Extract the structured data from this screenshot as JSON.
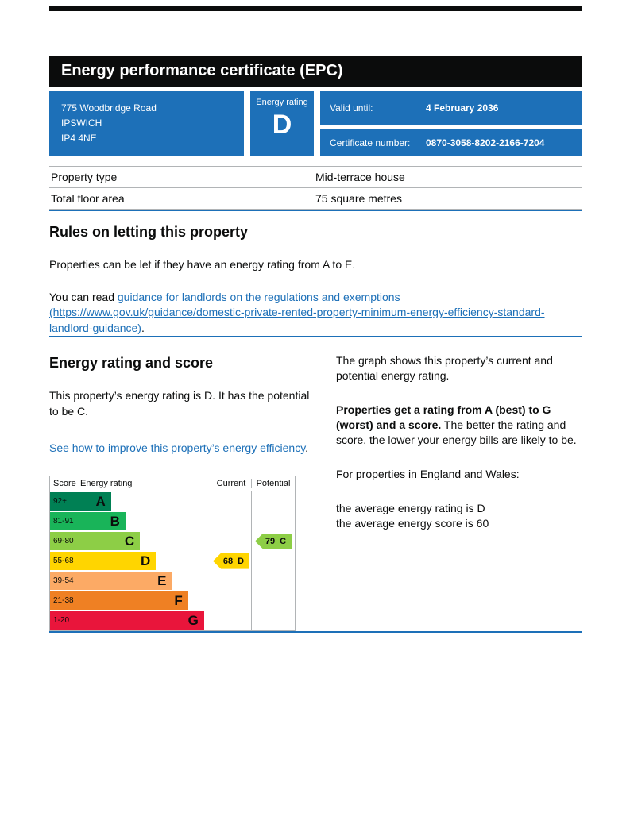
{
  "header": {
    "title": "Energy performance certificate (EPC)"
  },
  "summary": {
    "address_lines": [
      "775 Woodbridge Road",
      "IPSWICH",
      "IP4 4NE"
    ],
    "energy_rating_label": "Energy rating",
    "energy_rating_value": "D",
    "valid_until_label": "Valid until:",
    "valid_until_value": "4 February 2036",
    "certificate_number_label": "Certificate number:",
    "certificate_number_value": "0870-3058-8202-2166-7204"
  },
  "property_table": {
    "rows": [
      {
        "label": "Property type",
        "value": "Mid-terrace house"
      },
      {
        "label": "Total floor area",
        "value": "75 square metres"
      }
    ]
  },
  "rules_section": {
    "heading": "Rules on letting this property",
    "paragraph1": "Properties can be let if they have an energy rating from A to E.",
    "paragraph2_prefix": "You can read ",
    "paragraph2_link": "guidance for landlords on the regulations and exemptions (https://www.gov.uk/guidance/domestic-private-rented-property-minimum-energy-efficiency-standard-landlord-guidance)",
    "paragraph2_suffix": "."
  },
  "rating_section": {
    "heading": "Energy rating and score",
    "paragraph1": "This property’s energy rating is D. It has the potential to be C.",
    "improve_link": "See how to improve this property’s energy efficiency",
    "improve_link_suffix": ".",
    "right_paragraph1": "The graph shows this property’s current and potential energy rating.",
    "right_paragraph2_bold": "Properties get a rating from A (best) to G (worst) and a score.",
    "right_paragraph2_rest": " The better the rating and score, the lower your energy bills are likely to be.",
    "right_paragraph3": "For properties in England and Wales:",
    "right_line1": "the average energy rating is D",
    "right_line2": "the average energy score is 60"
  },
  "chart_data": {
    "type": "bar",
    "title": "Energy rating and score chart",
    "columns": [
      "Score",
      "Energy rating",
      "Current",
      "Potential"
    ],
    "bands": [
      {
        "score": "92+",
        "letter": "A",
        "color": "#008054",
        "width_pct": 38
      },
      {
        "score": "81-91",
        "letter": "B",
        "color": "#19b459",
        "width_pct": 47
      },
      {
        "score": "69-80",
        "letter": "C",
        "color": "#8dce46",
        "width_pct": 56
      },
      {
        "score": "55-68",
        "letter": "D",
        "color": "#ffd500",
        "width_pct": 66
      },
      {
        "score": "39-54",
        "letter": "E",
        "color": "#fcaa65",
        "width_pct": 76
      },
      {
        "score": "21-38",
        "letter": "F",
        "color": "#ef8023",
        "width_pct": 86
      },
      {
        "score": "1-20",
        "letter": "G",
        "color": "#e9153b",
        "width_pct": 96
      }
    ],
    "current": {
      "score": 68,
      "letter": "D",
      "band_index": 3,
      "color": "#ffd500"
    },
    "potential": {
      "score": 79,
      "letter": "C",
      "band_index": 2,
      "color": "#8dce46"
    }
  },
  "colors": {
    "accent_blue": "#1d70b8",
    "header_black": "#0b0c0c",
    "border_grey": "#b1b4b6"
  }
}
